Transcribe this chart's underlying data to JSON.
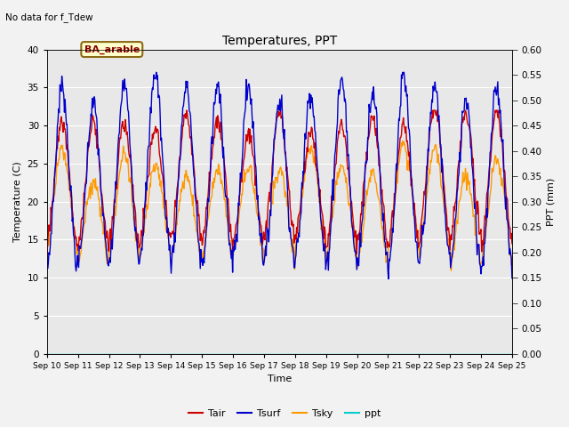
{
  "title": "Temperatures, PPT",
  "subtitle": "No data for f_Tdew",
  "annotation": "BA_arable",
  "xlabel": "Time",
  "ylabel_left": "Temperature (C)",
  "ylabel_right": "PPT (mm)",
  "ylim_left": [
    0,
    40
  ],
  "ylim_right": [
    0,
    0.6
  ],
  "yticks_left": [
    0,
    5,
    10,
    15,
    20,
    25,
    30,
    35,
    40
  ],
  "yticks_right": [
    0.0,
    0.05,
    0.1,
    0.15,
    0.2,
    0.25,
    0.3,
    0.35,
    0.4,
    0.45,
    0.5,
    0.55,
    0.6
  ],
  "xtick_labels": [
    "Sep 10",
    "Sep 11",
    "Sep 12",
    "Sep 13",
    "Sep 14",
    "Sep 15",
    "Sep 16",
    "Sep 17",
    "Sep 18",
    "Sep 19",
    "Sep 20",
    "Sep 21",
    "Sep 22",
    "Sep 23",
    "Sep 24",
    "Sep 25"
  ],
  "n_days": 15,
  "pts_per_day": 48,
  "colors": {
    "Tair": "#cc0000",
    "Tsurf": "#0000cc",
    "Tsky": "#ff9900",
    "ppt": "#00cccc"
  },
  "background_color": "#e8e8e8",
  "grid_color": "#ffffff",
  "figsize": [
    6.4,
    4.8
  ],
  "dpi": 100,
  "linewidth": 1.0
}
